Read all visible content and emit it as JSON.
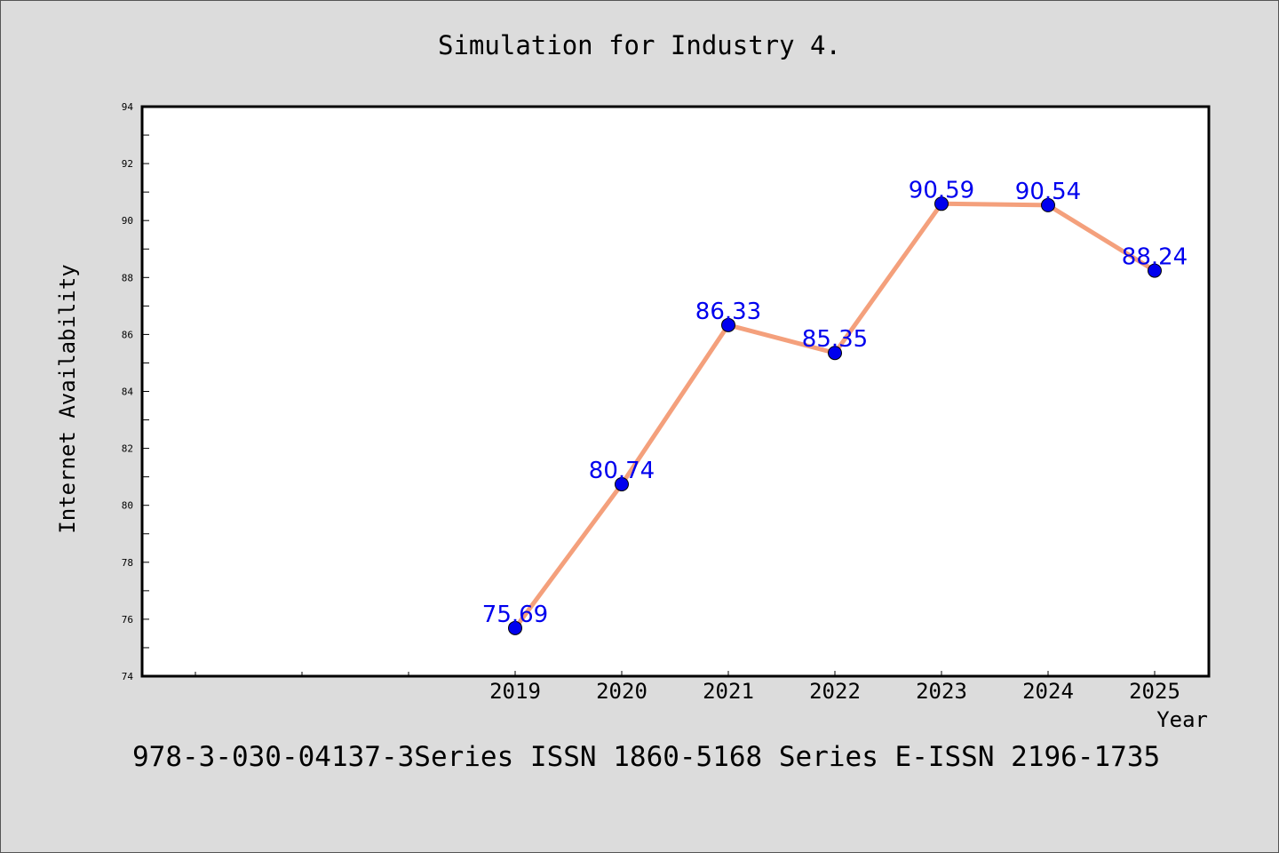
{
  "chart_data": {
    "type": "line",
    "title": "Simulation for Industry 4.",
    "xlabel": "Year",
    "ylabel": "Internet Availability",
    "x": [
      "2019",
      "2020",
      "2021",
      "2022",
      "2023",
      "2024",
      "2025"
    ],
    "series": [
      {
        "values": [
          75.69,
          80.74,
          86.33,
          85.35,
          90.59,
          90.54,
          88.24
        ],
        "data_labels": [
          "75.69",
          "80.74",
          "86.33",
          "85.35",
          "90.59",
          "90.54",
          "88.24"
        ]
      }
    ],
    "ylim": [
      74,
      94
    ],
    "yticks": [
      "74",
      "76",
      "78",
      "80",
      "82",
      "84",
      "86",
      "88",
      "90",
      "92",
      "94"
    ],
    "grid": false,
    "legend": "none",
    "line_color": "#f4a07c",
    "marker_color": "#0000ee",
    "label_color": "#0000ee"
  },
  "footer": "978-3-030-04137-3Series ISSN 1860-5168 Series E-ISSN 2196-1735"
}
